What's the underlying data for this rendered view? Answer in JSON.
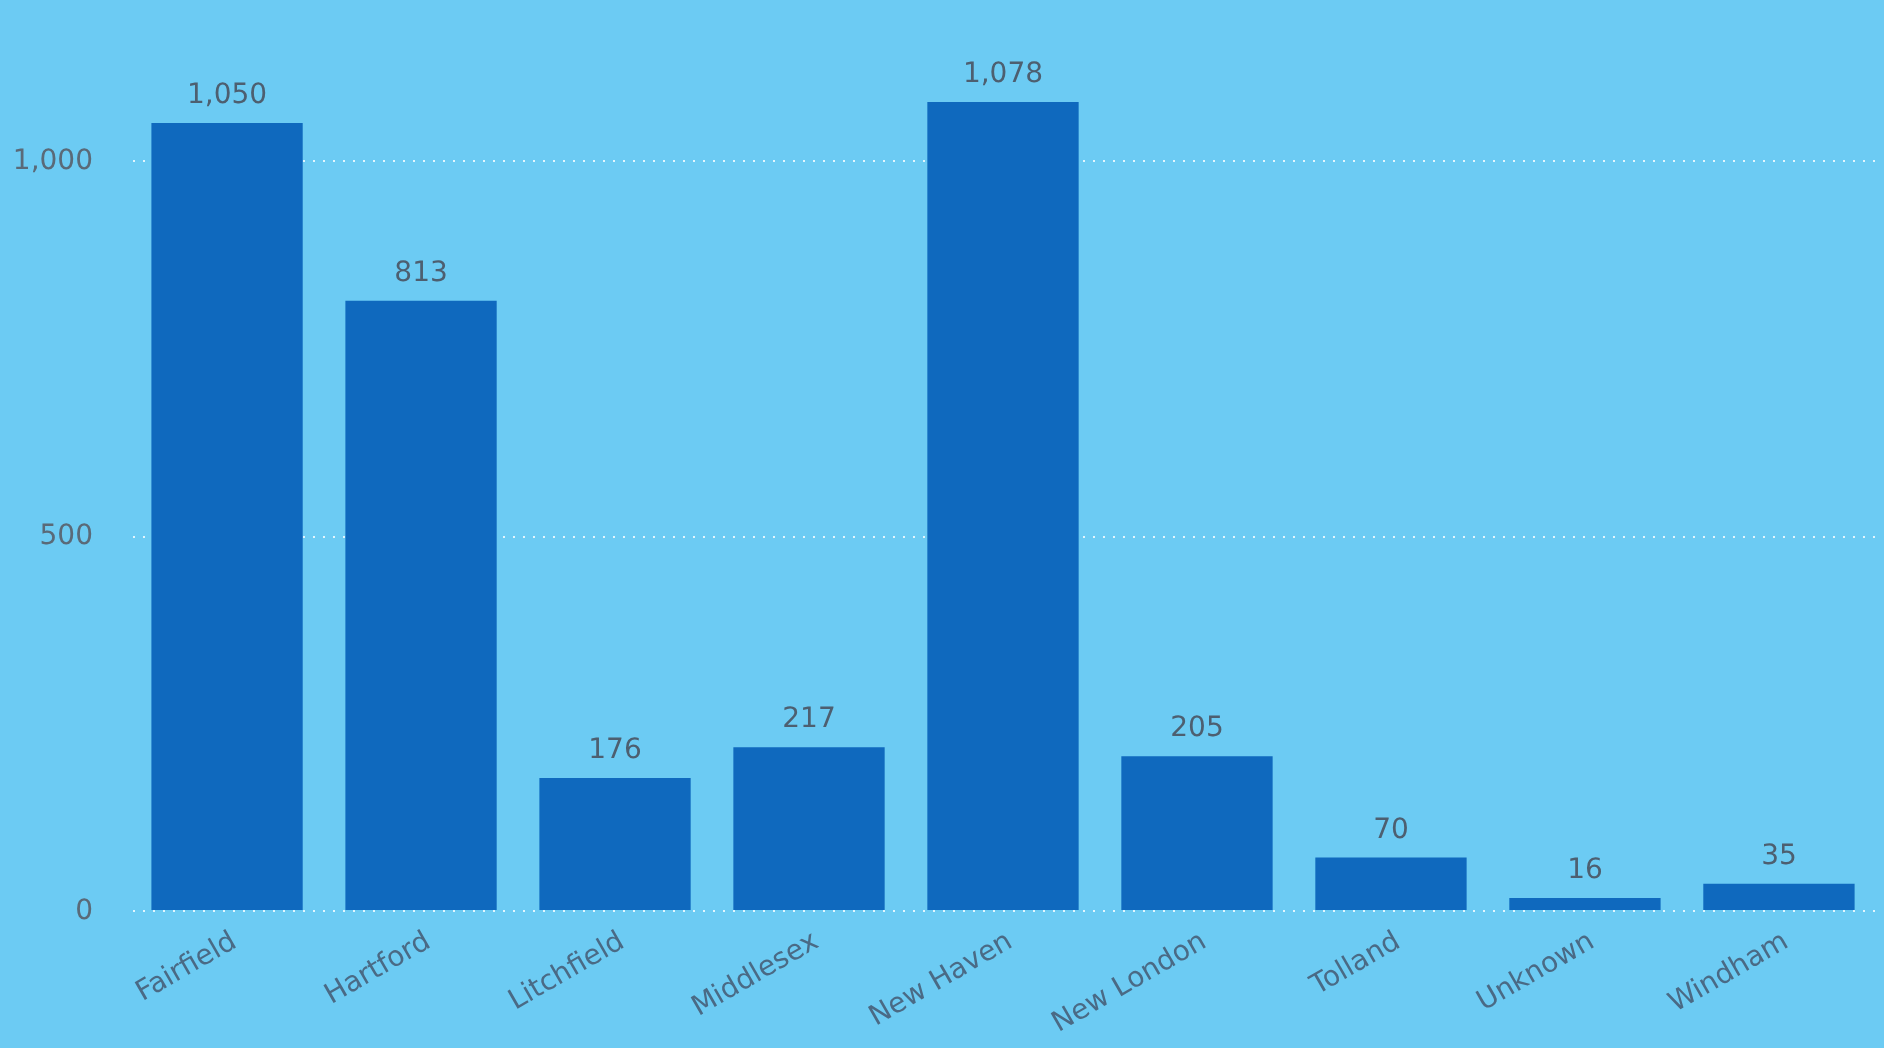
{
  "chart_data": {
    "type": "bar",
    "categories": [
      "Fairfield",
      "Hartford",
      "Litchfield",
      "Middlesex",
      "New Haven",
      "New London",
      "Tolland",
      "Unknown",
      "Windham"
    ],
    "values": [
      1050,
      813,
      176,
      217,
      1078,
      205,
      70,
      16,
      35
    ],
    "value_labels": [
      "1,050",
      "813",
      "176",
      "217",
      "1,078",
      "205",
      "70",
      "16",
      "35"
    ],
    "color": "#0f69be",
    "ylim": [
      0,
      1078
    ],
    "yticks": [
      0,
      {
        "value": 500,
        "label": "500"
      },
      {
        "value": 1000,
        "label": "1,000"
      }
    ],
    "grid": "y"
  }
}
